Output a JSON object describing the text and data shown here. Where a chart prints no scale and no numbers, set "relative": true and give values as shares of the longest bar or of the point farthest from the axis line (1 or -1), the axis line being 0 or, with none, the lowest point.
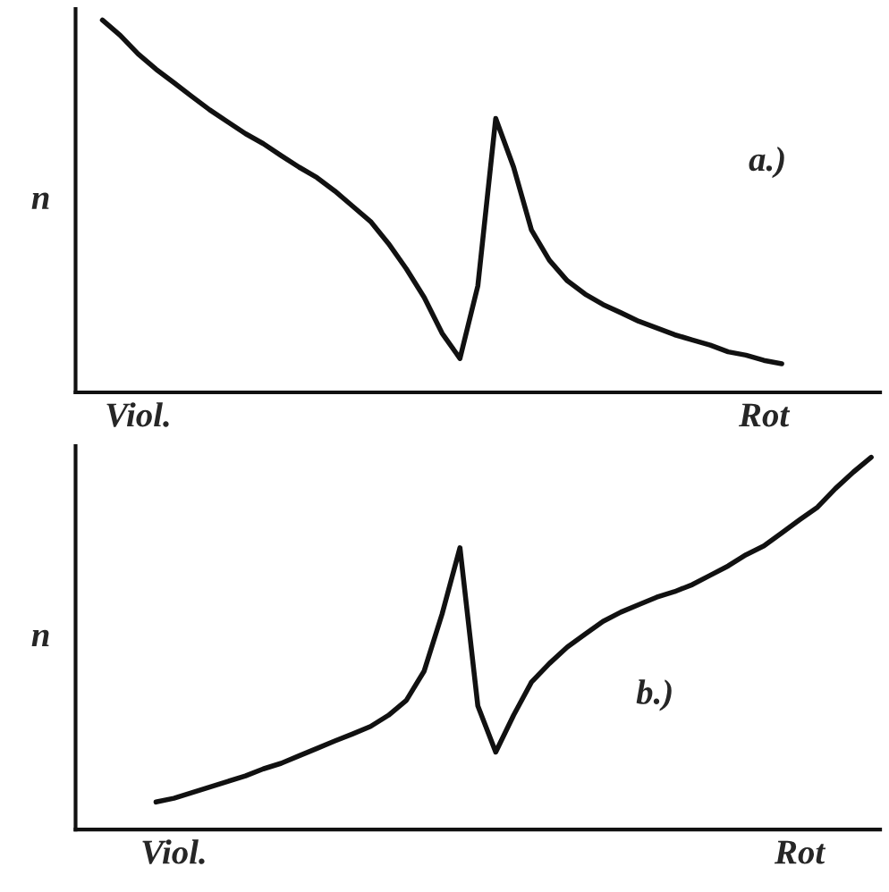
{
  "chart_data": [
    {
      "type": "line",
      "relative": true,
      "ylabel": "n",
      "annotations": [
        "a.)"
      ],
      "grid": false,
      "legend": false,
      "line_style": "solid",
      "marker": "none",
      "categories": [
        null,
        null,
        null,
        "Viol.",
        null,
        null,
        null,
        null,
        null,
        null,
        null,
        null,
        null,
        null,
        null,
        null,
        null,
        null,
        null,
        null,
        null,
        null,
        null,
        null,
        null,
        null,
        null,
        null,
        null,
        null,
        null,
        null,
        null,
        null,
        null,
        null,
        null,
        null,
        "Rot",
        null,
        null,
        null,
        null,
        null,
        null
      ],
      "series": [
        {
          "color": "#111111",
          "values": [
            null,
            1.0,
            0.959,
            0.909,
            0.868,
            0.832,
            0.795,
            0.759,
            0.727,
            0.695,
            0.668,
            0.636,
            0.605,
            0.577,
            0.541,
            0.5,
            0.459,
            0.4,
            0.332,
            0.255,
            0.159,
            0.091,
            0.286,
            0.736,
            0.605,
            0.436,
            0.355,
            0.3,
            0.264,
            0.236,
            0.214,
            0.191,
            0.173,
            0.155,
            0.141,
            0.127,
            0.109,
            0.1,
            0.086,
            0.077,
            null,
            null,
            null,
            null,
            null
          ]
        }
      ]
    },
    {
      "type": "line",
      "relative": true,
      "ylabel": "n",
      "annotations": [
        "b.)"
      ],
      "grid": false,
      "legend": false,
      "line_style": "solid",
      "marker": "none",
      "categories": [
        null,
        null,
        null,
        null,
        null,
        "Viol.",
        null,
        null,
        null,
        null,
        null,
        null,
        null,
        null,
        null,
        null,
        null,
        null,
        null,
        null,
        null,
        null,
        null,
        null,
        null,
        null,
        null,
        null,
        null,
        null,
        null,
        null,
        null,
        null,
        null,
        null,
        null,
        null,
        null,
        null,
        "Rot",
        null,
        null,
        null,
        null
      ],
      "series": [
        {
          "color": "#111111",
          "values": [
            null,
            null,
            null,
            null,
            0.074,
            0.084,
            0.099,
            0.114,
            0.129,
            0.144,
            0.163,
            0.178,
            0.198,
            0.218,
            0.238,
            0.257,
            0.277,
            0.307,
            0.347,
            0.426,
            0.579,
            0.757,
            0.332,
            0.208,
            0.307,
            0.396,
            0.446,
            0.49,
            0.525,
            0.559,
            0.584,
            0.604,
            0.624,
            0.639,
            0.658,
            0.683,
            0.708,
            0.738,
            0.762,
            0.797,
            0.832,
            0.866,
            0.916,
            0.96,
            1.0
          ]
        }
      ]
    }
  ]
}
